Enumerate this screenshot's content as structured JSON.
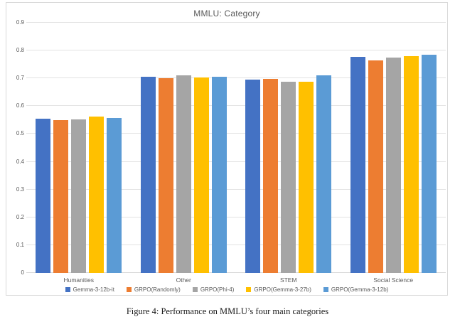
{
  "caption": "Figure 4: Performance on MMLU’s four main categories",
  "chart_data": {
    "type": "bar",
    "title": "MMLU: Category",
    "categories": [
      "Humanities",
      "Other",
      "STEM",
      "Social Science"
    ],
    "series": [
      {
        "name": "Gemma-3-12b-it",
        "color": "#4472C4",
        "values": [
          0.554,
          0.705,
          0.696,
          0.778
        ]
      },
      {
        "name": "GRPO(Randomly)",
        "color": "#ED7D31",
        "values": [
          0.55,
          0.7,
          0.697,
          0.765
        ]
      },
      {
        "name": "GRPO(Phi-4)",
        "color": "#A5A5A5",
        "values": [
          0.553,
          0.71,
          0.689,
          0.776
        ]
      },
      {
        "name": "GRPO(Gemma-3-27b)",
        "color": "#FFC000",
        "values": [
          0.563,
          0.704,
          0.689,
          0.781
        ]
      },
      {
        "name": "GRPO(Gemma-3-12b)",
        "color": "#5B9BD5",
        "values": [
          0.558,
          0.706,
          0.71,
          0.786
        ]
      }
    ],
    "ylim": [
      0,
      0.9
    ],
    "ytick_step": 0.1,
    "ytick_labels": [
      "0",
      "0.1",
      "0.2",
      "0.3",
      "0.4",
      "0.5",
      "0.6",
      "0.7",
      "0.8",
      "0.9"
    ],
    "grid": true,
    "legend_position": "bottom",
    "text_color": "#595959",
    "gridline_color": "#e3e3e3",
    "border_color": "#d9d9d9"
  }
}
